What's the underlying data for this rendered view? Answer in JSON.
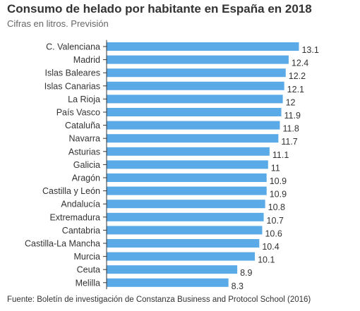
{
  "header": {
    "title": "Consumo de helado por habitante en España en 2018",
    "subtitle": "Cifras en litros. Previsión"
  },
  "footer": {
    "source": "Fuente: Boletín de investigación de Constanza Business and Protocol School (2016)"
  },
  "colors": {
    "bar": "#5aaae8",
    "axis": "#333333",
    "text": "#333333"
  },
  "chart_data": {
    "type": "bar",
    "orientation": "horizontal",
    "title": "Consumo de helado por habitante en España en 2018",
    "subtitle": "Cifras en litros. Previsión",
    "xlabel": "",
    "ylabel": "",
    "xlim": [
      0,
      13.6
    ],
    "grid": false,
    "legend": "none",
    "categories": [
      "C. Valenciana",
      "Madrid",
      "Islas Baleares",
      "Islas Canarias",
      "La Rioja",
      "País Vasco",
      "Cataluña",
      "Navarra",
      "Asturias",
      "Galicia",
      "Aragón",
      "Castilla y León",
      "Andalucía",
      "Extremadura",
      "Cantabria",
      "Castilla-La Mancha",
      "Murcia",
      "Ceuta",
      "Melilla"
    ],
    "values": [
      13.1,
      12.4,
      12.2,
      12.1,
      12,
      11.9,
      11.8,
      11.7,
      11.1,
      11,
      10.9,
      10.9,
      10.8,
      10.7,
      10.6,
      10.4,
      10.1,
      8.9,
      8.3
    ],
    "value_labels": [
      "13.1",
      "12.4",
      "12.2",
      "12.1",
      "12",
      "11.9",
      "11.8",
      "11.7",
      "11.1",
      "11",
      "10.9",
      "10.9",
      "10.8",
      "10.7",
      "10.6",
      "10.4",
      "10.1",
      "8.9",
      "8.3"
    ]
  }
}
